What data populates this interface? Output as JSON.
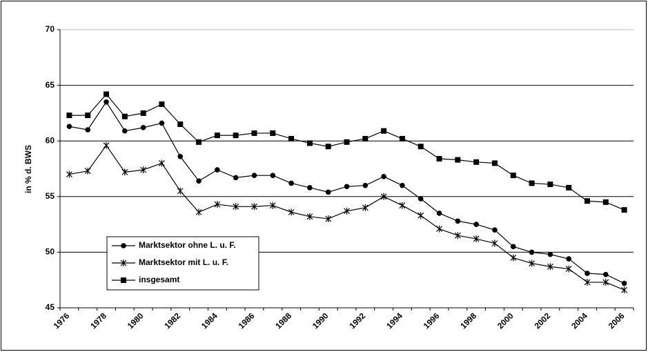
{
  "chart_data": {
    "type": "line",
    "ylabel": "in % d. BWS",
    "categories": [
      "1976",
      null,
      "1978",
      null,
      "1980",
      null,
      "1982",
      null,
      "1984",
      null,
      "1986",
      null,
      "1988",
      null,
      "1990",
      null,
      "1992",
      null,
      "1994",
      null,
      "1996",
      null,
      "1998",
      null,
      "2000",
      null,
      "2002",
      null,
      "2004",
      null,
      "2006"
    ],
    "series": [
      {
        "name": "Marktsektor ohne L. u. F.",
        "color": "#000000",
        "marker": "circle",
        "values": [
          61.3,
          61.0,
          63.5,
          60.9,
          61.2,
          61.6,
          58.6,
          56.4,
          57.4,
          56.7,
          56.9,
          56.9,
          56.2,
          55.8,
          55.4,
          55.9,
          56.0,
          56.8,
          56.0,
          54.8,
          53.5,
          52.8,
          52.5,
          52.0,
          50.5,
          50.0,
          49.8,
          49.4,
          48.1,
          48.0,
          47.2
        ]
      },
      {
        "name": "Marktsektor mit L. u. F.",
        "color": "#000000",
        "marker": "star",
        "values": [
          57.0,
          57.3,
          59.6,
          57.2,
          57.4,
          58.0,
          55.5,
          53.6,
          54.3,
          54.1,
          54.1,
          54.2,
          53.6,
          53.2,
          53.0,
          53.7,
          54.0,
          55.0,
          54.2,
          53.3,
          52.1,
          51.5,
          51.2,
          50.8,
          49.5,
          49.0,
          48.7,
          48.5,
          47.3,
          47.3,
          46.6
        ]
      },
      {
        "name": "insgesamt",
        "color": "#000000",
        "marker": "square",
        "values": [
          62.3,
          62.3,
          64.2,
          62.2,
          62.5,
          63.3,
          61.5,
          59.9,
          60.5,
          60.5,
          60.7,
          60.7,
          60.2,
          59.8,
          59.5,
          59.9,
          60.2,
          60.9,
          60.2,
          59.5,
          58.4,
          58.3,
          58.1,
          58.0,
          56.9,
          56.2,
          56.1,
          55.8,
          54.6,
          54.5,
          53.8
        ]
      }
    ],
    "ylim": [
      45,
      70
    ],
    "yticks": [
      45,
      50,
      55,
      60,
      65,
      70
    ],
    "grid": true
  }
}
